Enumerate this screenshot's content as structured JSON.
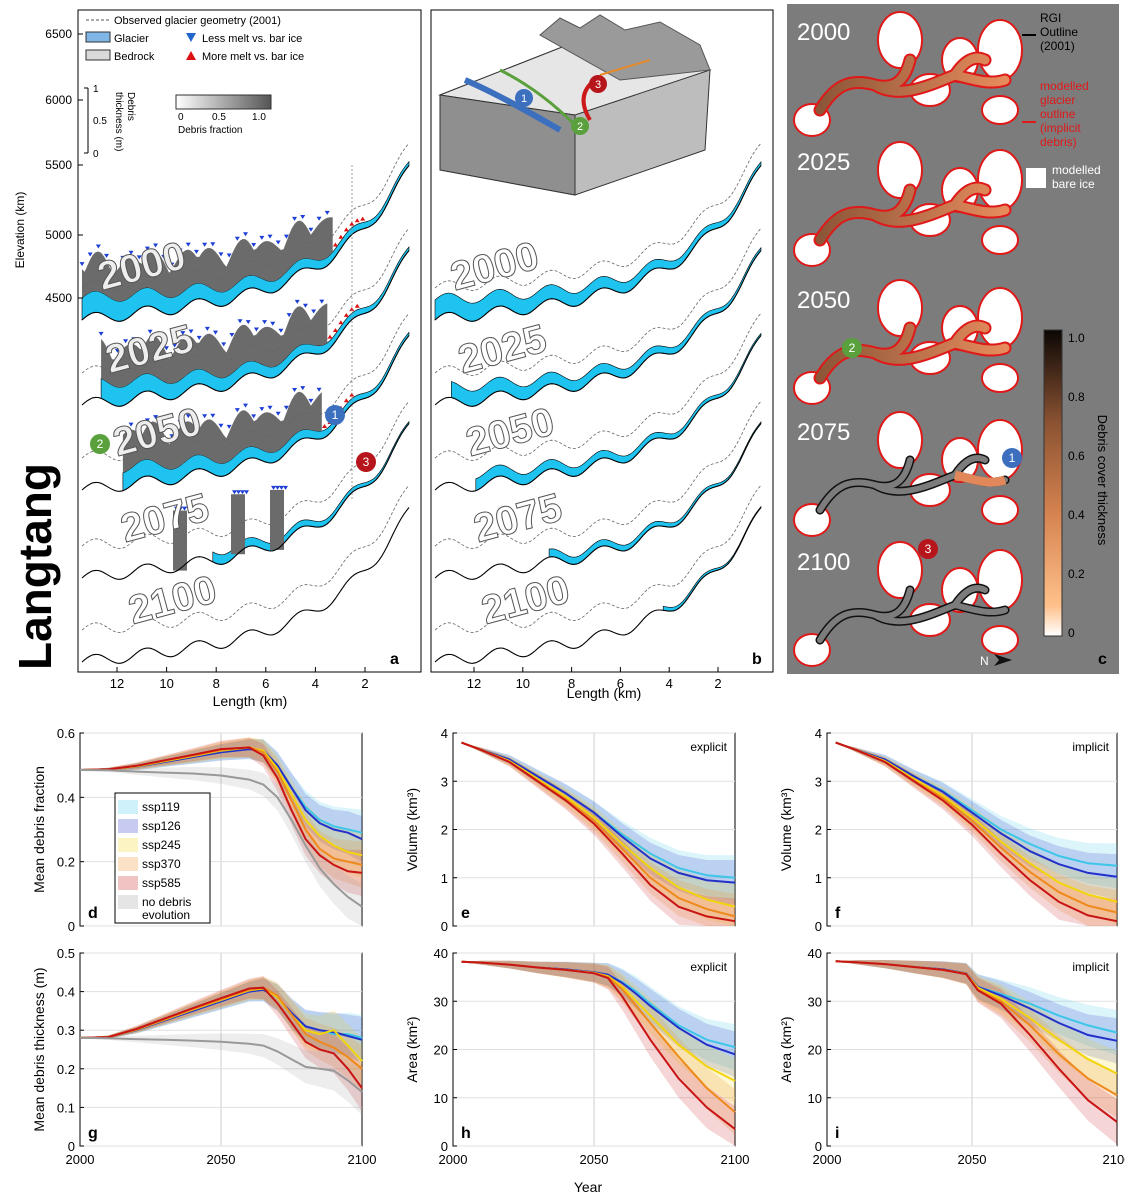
{
  "site": "Langtang",
  "panel_a": {
    "label": "a",
    "legend": {
      "observed": "Observed glacier geometry (2001)",
      "glacier": "Glacier",
      "bedrock": "Bedrock",
      "less_melt": "Less melt vs. bar ice",
      "more_melt": "More melt vs. bar ice",
      "debris_thickness_label": "Debris\nthickness (m)",
      "thickness_ticks": [
        "1",
        "0.5",
        "0"
      ],
      "debris_fraction_label": "Debris fraction",
      "fraction_ticks": [
        "0",
        "0.5",
        "1.0"
      ]
    },
    "ylabel": "Elevation (km)",
    "yticks": [
      "6500",
      "6000",
      "5500",
      "5000",
      "4500"
    ],
    "xlabel": "Length (km)",
    "xticks": [
      "12",
      "10",
      "8",
      "6",
      "4",
      "2"
    ],
    "years": [
      "2000",
      "2025",
      "2050",
      "2075",
      "2100"
    ],
    "markers": [
      "1",
      "2",
      "3"
    ]
  },
  "panel_b": {
    "label": "b",
    "xlabel": "Length (km)",
    "xticks": [
      "12",
      "10",
      "8",
      "6",
      "4",
      "2"
    ],
    "years": [
      "2000",
      "2025",
      "2050",
      "2075",
      "2100"
    ],
    "markers": [
      "1",
      "2",
      "3"
    ]
  },
  "panel_c": {
    "label": "c",
    "years": [
      "2000",
      "2025",
      "2050",
      "2075",
      "2100"
    ],
    "legend_rgi": "RGI\nOutline\n(2001)",
    "legend_modelled": "modelled\nglacier\noutline\n(implicit\ndebris)",
    "legend_bare": "modelled\nbare ice",
    "colorbar_label": "Debris cover thickness",
    "colorbar_ticks": [
      "1.0",
      "0.8",
      "0.6",
      "0.4",
      "0.2",
      "0"
    ],
    "north": "N",
    "markers": [
      "2",
      "1",
      "3"
    ]
  },
  "colors": {
    "ssp119": "#3ec6e8",
    "ssp126": "#2431c9",
    "ssp245": "#f2d40c",
    "ssp370": "#ee8a1c",
    "ssp585": "#c81414",
    "no_debris": "#999999",
    "glacier": "#1ec3ef",
    "debris": "#6b6b6b",
    "marker1": "#3d6fbf",
    "marker2": "#5aa03c",
    "marker3": "#b5151b"
  },
  "bottom": {
    "xlabel": "Year",
    "legend": [
      "ssp119",
      "ssp126",
      "ssp245",
      "ssp370",
      "ssp585",
      "no debris\nevolution"
    ]
  },
  "chart_data": [
    {
      "id": "d",
      "type": "line",
      "label": "d",
      "title": "",
      "xlabel": "",
      "ylabel": "Mean debris fraction",
      "xlim": [
        2000,
        2100
      ],
      "ylim": [
        0,
        0.6
      ],
      "yticks": [
        "0",
        "0.2",
        "0.4",
        "0.6"
      ],
      "xticks": [
        "2000",
        "2050",
        "2100"
      ],
      "grid": true,
      "x": [
        2000,
        2010,
        2020,
        2030,
        2040,
        2050,
        2060,
        2065,
        2070,
        2075,
        2080,
        2085,
        2090,
        2095,
        2100
      ],
      "series": [
        {
          "name": "ssp119",
          "values": [
            0.485,
            0.487,
            0.495,
            0.51,
            0.525,
            0.54,
            0.55,
            0.545,
            0.5,
            0.43,
            0.37,
            0.33,
            0.31,
            0.3,
            0.29
          ]
        },
        {
          "name": "ssp126",
          "values": [
            0.485,
            0.487,
            0.495,
            0.51,
            0.525,
            0.54,
            0.55,
            0.545,
            0.5,
            0.43,
            0.36,
            0.32,
            0.3,
            0.29,
            0.27
          ]
        },
        {
          "name": "ssp245",
          "values": [
            0.485,
            0.487,
            0.496,
            0.512,
            0.528,
            0.545,
            0.555,
            0.545,
            0.49,
            0.41,
            0.33,
            0.28,
            0.25,
            0.23,
            0.22
          ]
        },
        {
          "name": "ssp370",
          "values": [
            0.485,
            0.487,
            0.497,
            0.514,
            0.53,
            0.547,
            0.556,
            0.54,
            0.48,
            0.39,
            0.3,
            0.24,
            0.21,
            0.2,
            0.19
          ]
        },
        {
          "name": "ssp585",
          "values": [
            0.485,
            0.487,
            0.498,
            0.515,
            0.532,
            0.55,
            0.555,
            0.53,
            0.46,
            0.36,
            0.27,
            0.22,
            0.19,
            0.17,
            0.165
          ]
        },
        {
          "name": "no debris\nevolution",
          "values": [
            0.485,
            0.484,
            0.48,
            0.477,
            0.474,
            0.468,
            0.455,
            0.44,
            0.4,
            0.33,
            0.25,
            0.18,
            0.13,
            0.09,
            0.06
          ]
        }
      ]
    },
    {
      "id": "e",
      "type": "line",
      "label": "e",
      "annotation": "explicit",
      "xlabel": "",
      "ylabel": "Volume (km³)",
      "xlim": [
        2000,
        2100
      ],
      "ylim": [
        0,
        4
      ],
      "yticks": [
        "0",
        "1",
        "2",
        "3",
        "4"
      ],
      "xticks": [
        "2000",
        "2050",
        "2100"
      ],
      "grid": true,
      "x": [
        2003,
        2010,
        2020,
        2030,
        2040,
        2050,
        2060,
        2070,
        2080,
        2090,
        2100
      ],
      "series": [
        {
          "name": "ssp119",
          "values": [
            3.8,
            3.65,
            3.45,
            3.1,
            2.75,
            2.35,
            1.9,
            1.5,
            1.2,
            1.05,
            1.0
          ]
        },
        {
          "name": "ssp126",
          "values": [
            3.8,
            3.65,
            3.45,
            3.1,
            2.75,
            2.35,
            1.85,
            1.4,
            1.1,
            0.95,
            0.9
          ]
        },
        {
          "name": "ssp245",
          "values": [
            3.8,
            3.65,
            3.42,
            3.05,
            2.68,
            2.25,
            1.7,
            1.2,
            0.8,
            0.55,
            0.4
          ]
        },
        {
          "name": "ssp370",
          "values": [
            3.8,
            3.65,
            3.4,
            3.02,
            2.63,
            2.18,
            1.6,
            1.0,
            0.58,
            0.35,
            0.2
          ]
        },
        {
          "name": "ssp585",
          "values": [
            3.8,
            3.65,
            3.4,
            3.0,
            2.6,
            2.12,
            1.5,
            0.85,
            0.4,
            0.2,
            0.1
          ]
        }
      ]
    },
    {
      "id": "f",
      "type": "line",
      "label": "f",
      "annotation": "implicit",
      "xlabel": "",
      "ylabel": "Volume (km³)",
      "xlim": [
        2000,
        2100
      ],
      "ylim": [
        0,
        4
      ],
      "yticks": [
        "0",
        "1",
        "2",
        "3",
        "4"
      ],
      "xticks": [
        "2000",
        "2050",
        "2100"
      ],
      "grid": true,
      "x": [
        2003,
        2010,
        2020,
        2030,
        2040,
        2050,
        2060,
        2070,
        2080,
        2090,
        2100
      ],
      "series": [
        {
          "name": "ssp119",
          "values": [
            3.8,
            3.65,
            3.45,
            3.1,
            2.8,
            2.4,
            2.0,
            1.7,
            1.45,
            1.3,
            1.25
          ]
        },
        {
          "name": "ssp126",
          "values": [
            3.8,
            3.65,
            3.45,
            3.1,
            2.78,
            2.35,
            1.92,
            1.55,
            1.28,
            1.1,
            1.02
          ]
        },
        {
          "name": "ssp245",
          "values": [
            3.8,
            3.65,
            3.42,
            3.05,
            2.7,
            2.25,
            1.75,
            1.3,
            0.9,
            0.65,
            0.5
          ]
        },
        {
          "name": "ssp370",
          "values": [
            3.8,
            3.65,
            3.4,
            3.02,
            2.65,
            2.18,
            1.62,
            1.12,
            0.7,
            0.42,
            0.28
          ]
        },
        {
          "name": "ssp585",
          "values": [
            3.8,
            3.65,
            3.4,
            3.0,
            2.6,
            2.1,
            1.5,
            0.95,
            0.5,
            0.22,
            0.1
          ]
        }
      ]
    },
    {
      "id": "g",
      "type": "line",
      "label": "g",
      "xlabel": "",
      "ylabel": "Mean debris thickness (m)",
      "xlim": [
        2000,
        2100
      ],
      "ylim": [
        0,
        0.5
      ],
      "yticks": [
        "0",
        "0.1",
        "0.2",
        "0.3",
        "0.4",
        "0.5"
      ],
      "xticks": [
        "2000",
        "2050",
        "2100"
      ],
      "grid": true,
      "x": [
        2000,
        2010,
        2020,
        2030,
        2040,
        2050,
        2060,
        2065,
        2070,
        2075,
        2080,
        2085,
        2090,
        2095,
        2100
      ],
      "series": [
        {
          "name": "ssp119",
          "values": [
            0.28,
            0.282,
            0.3,
            0.325,
            0.35,
            0.375,
            0.4,
            0.405,
            0.385,
            0.34,
            0.31,
            0.3,
            0.29,
            0.29,
            0.28
          ]
        },
        {
          "name": "ssp126",
          "values": [
            0.28,
            0.282,
            0.3,
            0.325,
            0.35,
            0.375,
            0.4,
            0.405,
            0.385,
            0.345,
            0.31,
            0.3,
            0.295,
            0.285,
            0.275
          ]
        },
        {
          "name": "ssp245",
          "values": [
            0.28,
            0.282,
            0.301,
            0.327,
            0.353,
            0.378,
            0.403,
            0.408,
            0.385,
            0.34,
            0.3,
            0.29,
            0.3,
            0.26,
            0.22
          ]
        },
        {
          "name": "ssp370",
          "values": [
            0.28,
            0.282,
            0.302,
            0.328,
            0.355,
            0.38,
            0.405,
            0.41,
            0.39,
            0.34,
            0.29,
            0.27,
            0.255,
            0.23,
            0.2
          ]
        },
        {
          "name": "ssp585",
          "values": [
            0.28,
            0.282,
            0.303,
            0.33,
            0.357,
            0.383,
            0.408,
            0.41,
            0.37,
            0.32,
            0.27,
            0.25,
            0.24,
            0.2,
            0.15
          ]
        },
        {
          "name": "no debris\nevolution",
          "values": [
            0.28,
            0.279,
            0.277,
            0.275,
            0.273,
            0.27,
            0.265,
            0.26,
            0.245,
            0.225,
            0.205,
            0.2,
            0.195,
            0.17,
            0.14
          ]
        }
      ]
    },
    {
      "id": "h",
      "type": "line",
      "label": "h",
      "annotation": "explicit",
      "xlabel": "",
      "ylabel": "Area (km²)",
      "xlim": [
        2000,
        2100
      ],
      "ylim": [
        0,
        40
      ],
      "yticks": [
        "0",
        "10",
        "20",
        "30",
        "40"
      ],
      "xticks": [
        "2000",
        "2050",
        "2100"
      ],
      "grid": true,
      "x": [
        2003,
        2010,
        2020,
        2030,
        2040,
        2050,
        2055,
        2060,
        2065,
        2070,
        2080,
        2090,
        2100
      ],
      "series": [
        {
          "name": "ssp119",
          "values": [
            38.2,
            38.0,
            37.6,
            37.0,
            36.6,
            36.0,
            35.5,
            34.0,
            32.0,
            29.5,
            25.0,
            22.0,
            20.5
          ]
        },
        {
          "name": "ssp126",
          "values": [
            38.2,
            38.0,
            37.6,
            37.0,
            36.6,
            36.0,
            35.5,
            33.8,
            31.5,
            29.0,
            24.5,
            21.0,
            19.0
          ]
        },
        {
          "name": "ssp245",
          "values": [
            38.2,
            38.0,
            37.6,
            37.0,
            36.5,
            35.9,
            35.2,
            33.0,
            30.0,
            27.0,
            21.0,
            16.5,
            13.5
          ]
        },
        {
          "name": "ssp370",
          "values": [
            38.2,
            38.0,
            37.6,
            37.0,
            36.5,
            35.9,
            35.0,
            32.5,
            29.0,
            25.5,
            18.5,
            12.0,
            7.0
          ]
        },
        {
          "name": "ssp585",
          "values": [
            38.2,
            38.0,
            37.6,
            37.0,
            36.5,
            35.8,
            34.8,
            31.0,
            26.5,
            22.0,
            14.0,
            8.0,
            3.5
          ]
        }
      ]
    },
    {
      "id": "i",
      "type": "line",
      "label": "i",
      "annotation": "implicit",
      "xlabel": "",
      "ylabel": "Area (km²)",
      "xlim": [
        2000,
        2100
      ],
      "ylim": [
        0,
        40
      ],
      "yticks": [
        "0",
        "10",
        "20",
        "30",
        "40"
      ],
      "xticks": [
        "2000",
        "2050",
        "2100"
      ],
      "grid": true,
      "x": [
        2003,
        2010,
        2020,
        2030,
        2040,
        2048,
        2052,
        2060,
        2070,
        2080,
        2090,
        2100
      ],
      "series": [
        {
          "name": "ssp119",
          "values": [
            38.3,
            38.1,
            37.7,
            37.1,
            36.6,
            35.8,
            33.0,
            31.5,
            29.5,
            27.0,
            25.0,
            23.5
          ]
        },
        {
          "name": "ssp126",
          "values": [
            38.3,
            38.1,
            37.7,
            37.1,
            36.6,
            35.8,
            33.0,
            31.2,
            28.5,
            25.5,
            23.0,
            21.8
          ]
        },
        {
          "name": "ssp245",
          "values": [
            38.3,
            38.1,
            37.7,
            37.1,
            36.5,
            35.7,
            32.8,
            30.5,
            26.5,
            22.0,
            18.0,
            15.0
          ]
        },
        {
          "name": "ssp370",
          "values": [
            38.3,
            38.1,
            37.7,
            37.1,
            36.5,
            35.7,
            32.5,
            30.0,
            25.0,
            19.0,
            14.0,
            10.5
          ]
        },
        {
          "name": "ssp585",
          "values": [
            38.3,
            38.1,
            37.7,
            37.1,
            36.5,
            35.6,
            32.3,
            29.5,
            23.0,
            16.0,
            9.5,
            5.0
          ]
        }
      ]
    }
  ]
}
